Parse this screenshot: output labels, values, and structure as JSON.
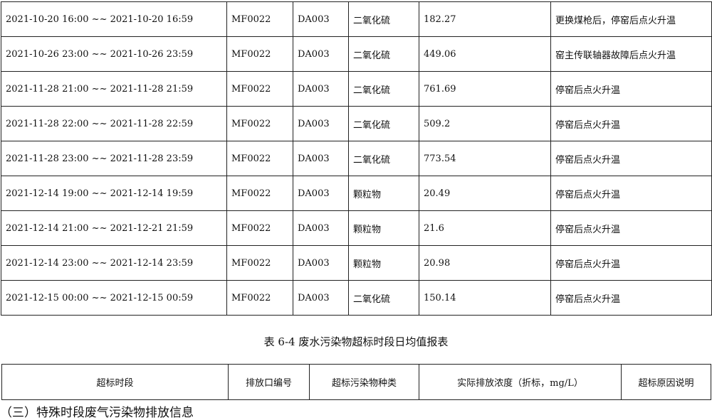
{
  "table1": {
    "rows": [
      [
        "2021-10-20 16:00 ~~ 2021-10-20 16:59",
        "MF0022",
        "DA003",
        "二氧化硫",
        "182.27",
        "更换煤枪后，停窑后点火升温"
      ],
      [
        "2021-10-26 23:00 ~~ 2021-10-26 23:59",
        "MF0022",
        "DA003",
        "二氧化硫",
        "449.06",
        "窑主传联轴器故障后点火升温"
      ],
      [
        "2021-11-28 21:00 ~~ 2021-11-28 21:59",
        "MF0022",
        "DA003",
        "二氧化硫",
        "761.69",
        "停窑后点火升温"
      ],
      [
        "2021-11-28 22:00 ~~ 2021-11-28 22:59",
        "MF0022",
        "DA003",
        "二氧化硫",
        "509.2",
        "停窑后点火升温"
      ],
      [
        "2021-11-28 23:00 ~~ 2021-11-28 23:59",
        "MF0022",
        "DA003",
        "二氧化硫",
        "773.54",
        "停窑后点火升温"
      ],
      [
        "2021-12-14 19:00 ~~ 2021-12-14 19:59",
        "MF0022",
        "DA003",
        "颗粒物",
        "20.49",
        "停窑后点火升温"
      ],
      [
        "2021-12-14 21:00 ~~ 2021-12-21 21:59",
        "MF0022",
        "DA003",
        "颗粒物",
        "21.6",
        "停窑后点火升温"
      ],
      [
        "2021-12-14 23:00 ~~ 2021-12-14 23:59",
        "MF0022",
        "DA003",
        "颗粒物",
        "20.98",
        "停窑后点火升温"
      ],
      [
        "2021-12-15 00:00 ~~ 2021-12-15 00:59",
        "MF0022",
        "DA003",
        "二氧化硫",
        "150.14",
        "停窑后点火升温"
      ]
    ]
  },
  "caption": "表 6-4 废水污染物超标时段日均值报表",
  "table2": {
    "headers": [
      "超标时段",
      "排放口编号",
      "超标污染物种类",
      "实际排放浓度（折标，mg/L）",
      "超标原因说明"
    ]
  },
  "section_heading": "（三）特殊时段废气污染物排放信息"
}
